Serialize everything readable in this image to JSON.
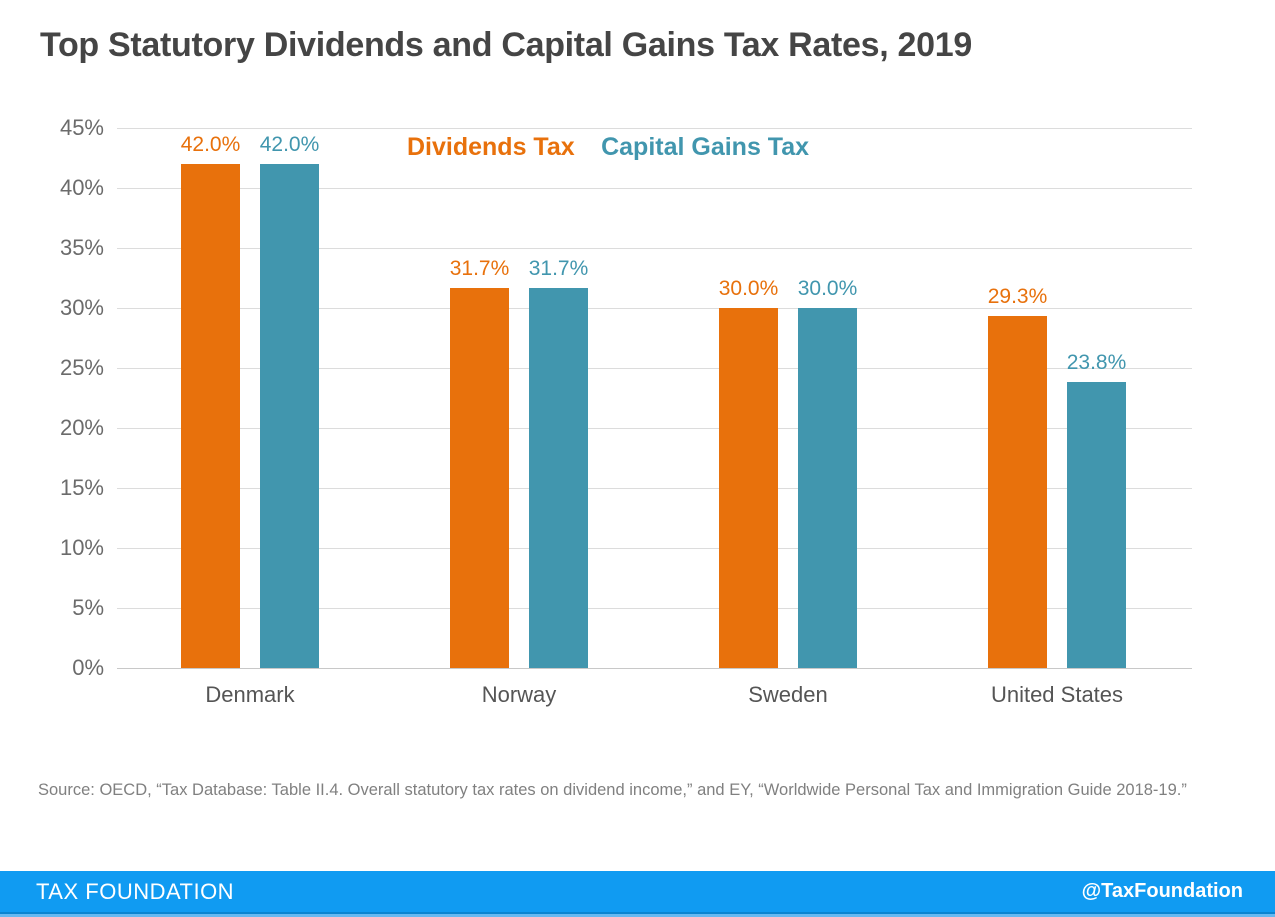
{
  "title": "Top Statutory Dividends and Capital Gains Tax Rates, 2019",
  "chart_data": {
    "type": "bar",
    "categories": [
      "Denmark",
      "Norway",
      "Sweden",
      "United States"
    ],
    "series": [
      {
        "name": "Dividends Tax",
        "color": "#e8710c",
        "values": [
          42.0,
          31.7,
          30.0,
          29.3
        ],
        "labels": [
          "42.0%",
          "31.7%",
          "30.0%",
          "29.3%"
        ]
      },
      {
        "name": "Capital Gains Tax",
        "color": "#4196ae",
        "values": [
          42.0,
          31.7,
          30.0,
          23.8
        ],
        "labels": [
          "42.0%",
          "31.7%",
          "30.0%",
          "23.8%"
        ]
      }
    ],
    "ylabel": "",
    "xlabel": "",
    "ylim": [
      0,
      45
    ],
    "ytick_step": 5,
    "yticks": [
      "45%",
      "40%",
      "35%",
      "30%",
      "25%",
      "20%",
      "15%",
      "10%",
      "5%",
      "0%"
    ],
    "grid": true,
    "legend_position": "top-center"
  },
  "source": "Source: OECD, “Tax Database: Table II.4. Overall statutory tax rates on dividend income,” and EY, “Worldwide Personal Tax and Immigration Guide 2018-19.”",
  "footer": {
    "brand": "TAX FOUNDATION",
    "handle": "@TaxFoundation",
    "bar_color": "#109bf2",
    "edge_dark_color": "#0b84d0",
    "edge_light_color": "#66b9f2"
  }
}
